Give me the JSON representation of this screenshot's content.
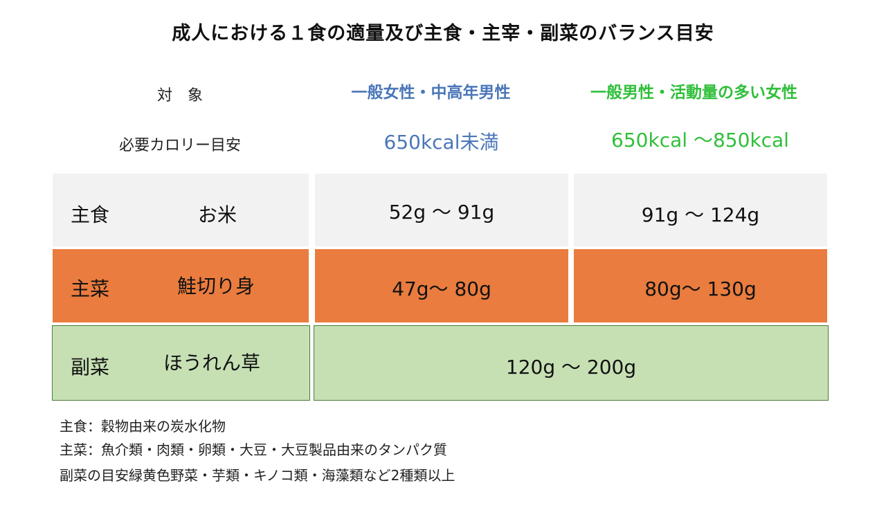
{
  "title": "成人における１食の適量及び主食・主宰・副菜のバランス目安",
  "header": {
    "target_label": "対　象",
    "group_female": "一般女性・中高年男性",
    "group_male": "一般男性・活動量の多い女性",
    "calorie_label": "必要カロリー目安",
    "calorie_female": "650kcal未満",
    "calorie_male": "650kcal 〜850kcal"
  },
  "rows": [
    {
      "category": "主食",
      "food": "お米",
      "female": "52g 〜 91g",
      "male": "91g 〜 124g",
      "color": "#f2f2f2"
    },
    {
      "category": "主菜",
      "food": "鮭切り身",
      "female": "47g〜 80g",
      "male": "80g〜 130g",
      "color": "#e97c3e"
    },
    {
      "category": "副菜",
      "food": "ほうれん草",
      "combined": "120g 〜 200g",
      "color": "#c6e0b4"
    }
  ],
  "notes": [
    "主食：穀物由来の炭水化物",
    "主菜：魚介類・肉類・卵類・大豆・大豆製品由来のタンパク質",
    "副菜の目安緑黄色野菜・芋類・キノコ類・海藻類など2種類以上"
  ]
}
